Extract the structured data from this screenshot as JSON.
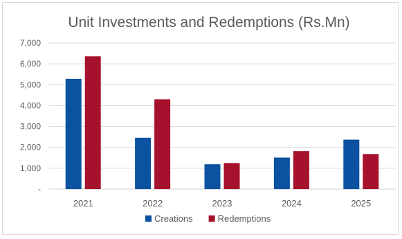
{
  "chart_data": {
    "type": "bar",
    "title": "Unit Investments and Redemptions (Rs.Mn)",
    "categories": [
      "2021",
      "2022",
      "2023",
      "2024",
      "2025"
    ],
    "series": [
      {
        "name": "Creations",
        "values": [
          5280,
          2460,
          1190,
          1510,
          2370
        ],
        "color": "#0b52a1"
      },
      {
        "name": "Redemptions",
        "values": [
          6360,
          4300,
          1250,
          1820,
          1680
        ],
        "color": "#a6122d"
      }
    ],
    "ylim": [
      0,
      7000
    ],
    "yticks": [
      {
        "value": 0,
        "label": "-"
      },
      {
        "value": 1000,
        "label": "1,000"
      },
      {
        "value": 2000,
        "label": "2,000"
      },
      {
        "value": 3000,
        "label": "3,000"
      },
      {
        "value": 4000,
        "label": "4,000"
      },
      {
        "value": 5000,
        "label": "5,000"
      },
      {
        "value": 6000,
        "label": "6,000"
      },
      {
        "value": 7000,
        "label": "7,000"
      }
    ],
    "xlabel": "",
    "ylabel": "",
    "grid": true,
    "legend_position": "bottom"
  }
}
